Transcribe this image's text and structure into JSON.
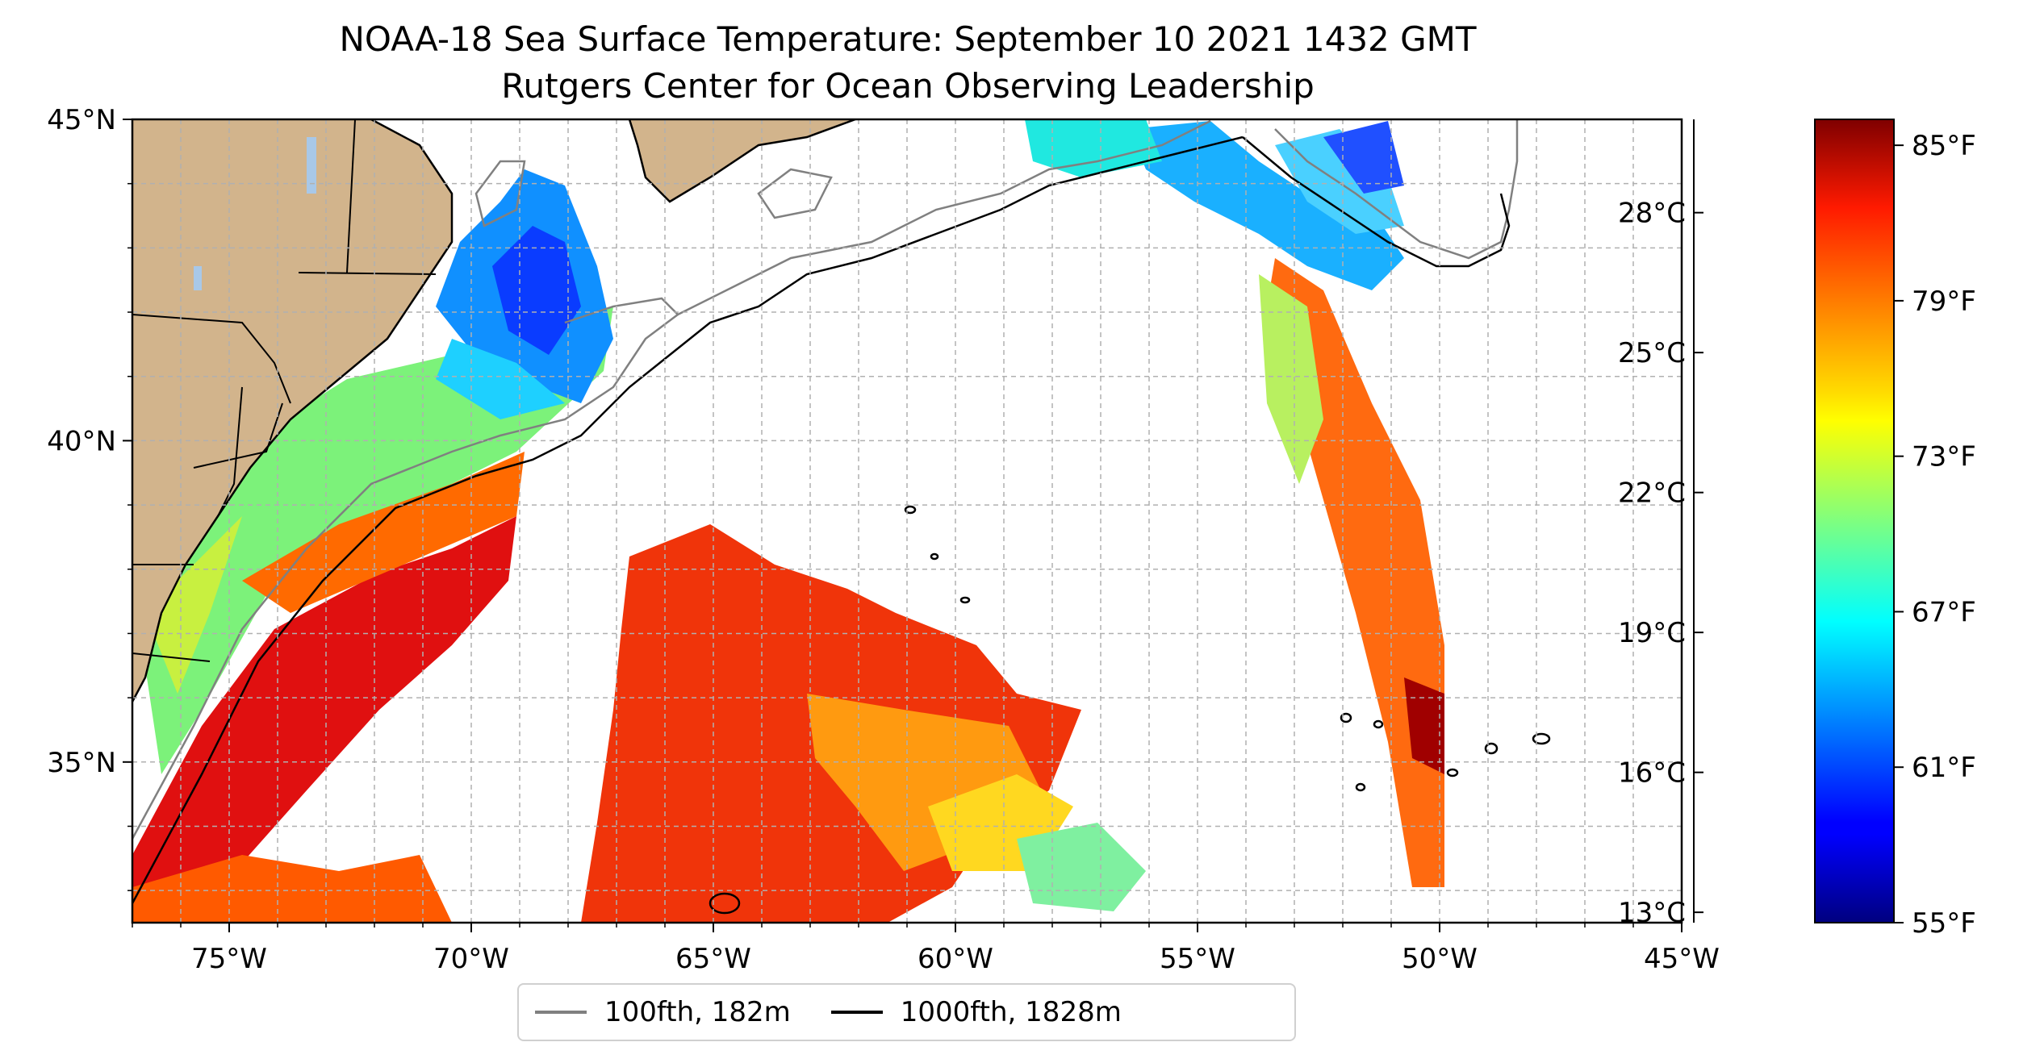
{
  "title": "NOAA-18 Sea Surface Temperature: September 10 2021 1432 GMT",
  "subtitle": "Rutgers Center for Ocean Observing Leadership",
  "map": {
    "lon_range": [
      -77,
      -45
    ],
    "lat_range": [
      32.5,
      45
    ],
    "x_ticks": [
      {
        "lon": -75,
        "label": "75°W"
      },
      {
        "lon": -70,
        "label": "70°W"
      },
      {
        "lon": -65,
        "label": "65°W"
      },
      {
        "lon": -60,
        "label": "60°W"
      },
      {
        "lon": -55,
        "label": "55°W"
      },
      {
        "lon": -50,
        "label": "50°W"
      },
      {
        "lon": -45,
        "label": "45°W"
      }
    ],
    "y_ticks": [
      {
        "lat": 45,
        "label": "45°N"
      },
      {
        "lat": 40,
        "label": "40°N"
      },
      {
        "lat": 35,
        "label": "35°N"
      }
    ],
    "gridlines": true,
    "colors": {
      "land": "#d2b48c",
      "lakes": "#a8c8e8",
      "ocean_nodata": "#ffffff",
      "grid": "#b0b0b0",
      "isobath_100fth": "#808080",
      "isobath_1000fth": "#000000"
    }
  },
  "colorbar": {
    "colormap": "jet",
    "range_f": [
      55,
      86
    ],
    "fahrenheit_labels": [
      "85°F",
      "79°F",
      "73°F",
      "67°F",
      "61°F",
      "55°F"
    ],
    "fahrenheit_values": [
      85,
      79,
      73,
      67,
      61,
      55
    ],
    "celsius_labels": [
      "28°C",
      "25°C",
      "22°C",
      "19°C",
      "16°C",
      "13°C"
    ],
    "celsius_values": [
      28,
      25,
      22,
      19,
      16,
      13
    ]
  },
  "legend": {
    "items": [
      {
        "label": "100fth, 182m",
        "color": "#808080"
      },
      {
        "label": "1000fth, 1828m",
        "color": "#000000"
      }
    ]
  }
}
